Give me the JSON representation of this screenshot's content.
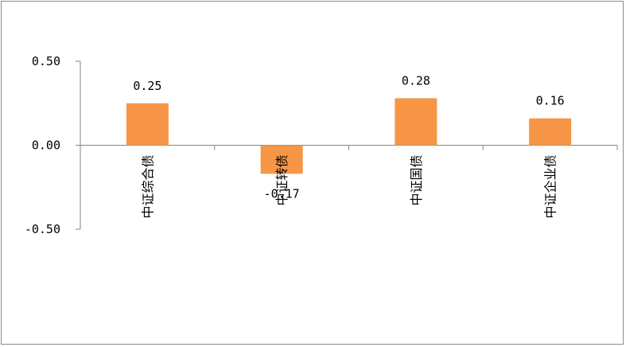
{
  "chart_data": {
    "type": "bar",
    "categories": [
      "中证综合债",
      "中证转债",
      "中证国债",
      "中证企业债"
    ],
    "values": [
      0.25,
      -0.17,
      0.28,
      0.16
    ],
    "value_labels": [
      "0.25",
      "-0.17",
      "0.28",
      "0.16"
    ],
    "title": "",
    "xlabel": "",
    "ylabel": "",
    "ylim": [
      -0.5,
      0.5
    ],
    "yticks": [
      0.5,
      0.0,
      -0.5
    ],
    "ytick_labels": [
      "0.50",
      "0.00",
      "-0.50"
    ],
    "bar_color": "#f79646",
    "grid": false,
    "legend": "none"
  }
}
